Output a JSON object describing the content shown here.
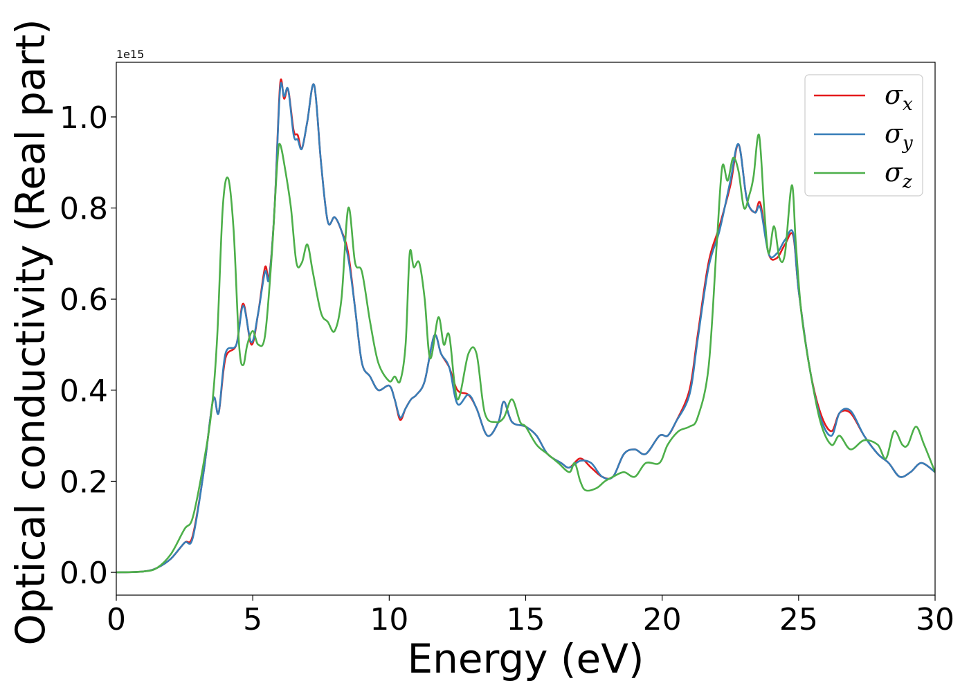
{
  "chart_data": {
    "type": "line",
    "title": "",
    "xlabel": "Energy (eV)",
    "ylabel": "Optical conductivity (Real part)",
    "y_offset_label": "1e15",
    "xlim": [
      0,
      30
    ],
    "ylim": [
      -0.05,
      1.12
    ],
    "xticks": [
      0,
      5,
      10,
      15,
      20,
      25,
      30
    ],
    "xtick_labels": [
      "0",
      "5",
      "10",
      "15",
      "20",
      "25",
      "30"
    ],
    "yticks": [
      0.0,
      0.2,
      0.4,
      0.6,
      0.8,
      1.0
    ],
    "ytick_labels": [
      "0.0",
      "0.2",
      "0.4",
      "0.6",
      "0.8",
      "1.0"
    ],
    "grid": false,
    "legend_position": "top-right",
    "series": [
      {
        "name": "σx",
        "legend_symbol": "σ",
        "legend_subscript": "x",
        "color": "#e41a1c",
        "points": [
          [
            0,
            0
          ],
          [
            1,
            0.002
          ],
          [
            1.5,
            0.01
          ],
          [
            2,
            0.03
          ],
          [
            2.5,
            0.065
          ],
          [
            2.8,
            0.08
          ],
          [
            3.2,
            0.22
          ],
          [
            3.55,
            0.38
          ],
          [
            3.75,
            0.35
          ],
          [
            4.0,
            0.47
          ],
          [
            4.4,
            0.5
          ],
          [
            4.65,
            0.59
          ],
          [
            4.95,
            0.5
          ],
          [
            5.2,
            0.57
          ],
          [
            5.45,
            0.67
          ],
          [
            5.6,
            0.65
          ],
          [
            5.8,
            0.8
          ],
          [
            6.0,
            1.07
          ],
          [
            6.15,
            1.04
          ],
          [
            6.3,
            1.06
          ],
          [
            6.5,
            0.97
          ],
          [
            6.65,
            0.96
          ],
          [
            6.8,
            0.93
          ],
          [
            7.0,
            0.99
          ],
          [
            7.25,
            1.07
          ],
          [
            7.5,
            0.9
          ],
          [
            7.75,
            0.77
          ],
          [
            8.0,
            0.78
          ],
          [
            8.25,
            0.75
          ],
          [
            8.5,
            0.7
          ],
          [
            8.75,
            0.58
          ],
          [
            9.0,
            0.46
          ],
          [
            9.3,
            0.43
          ],
          [
            9.6,
            0.4
          ],
          [
            10.0,
            0.41
          ],
          [
            10.2,
            0.38
          ],
          [
            10.4,
            0.335
          ],
          [
            10.6,
            0.36
          ],
          [
            10.8,
            0.38
          ],
          [
            11.0,
            0.39
          ],
          [
            11.3,
            0.42
          ],
          [
            11.65,
            0.52
          ],
          [
            11.9,
            0.48
          ],
          [
            12.2,
            0.45
          ],
          [
            12.5,
            0.4
          ],
          [
            12.9,
            0.39
          ],
          [
            13.2,
            0.36
          ],
          [
            13.6,
            0.3
          ],
          [
            14.0,
            0.33
          ],
          [
            14.2,
            0.375
          ],
          [
            14.5,
            0.33
          ],
          [
            15.0,
            0.32
          ],
          [
            15.4,
            0.3
          ],
          [
            15.8,
            0.26
          ],
          [
            16.3,
            0.24
          ],
          [
            16.6,
            0.23
          ],
          [
            17.0,
            0.25
          ],
          [
            17.4,
            0.23
          ],
          [
            17.8,
            0.21
          ],
          [
            18.2,
            0.21
          ],
          [
            18.6,
            0.26
          ],
          [
            19.0,
            0.27
          ],
          [
            19.4,
            0.26
          ],
          [
            19.9,
            0.3
          ],
          [
            20.2,
            0.3
          ],
          [
            20.5,
            0.33
          ],
          [
            21.0,
            0.4
          ],
          [
            21.3,
            0.52
          ],
          [
            21.7,
            0.68
          ],
          [
            22.1,
            0.76
          ],
          [
            22.5,
            0.85
          ],
          [
            22.8,
            0.94
          ],
          [
            23.1,
            0.82
          ],
          [
            23.4,
            0.79
          ],
          [
            23.6,
            0.81
          ],
          [
            23.9,
            0.7
          ],
          [
            24.2,
            0.69
          ],
          [
            24.5,
            0.72
          ],
          [
            24.8,
            0.74
          ],
          [
            25.0,
            0.62
          ],
          [
            25.4,
            0.45
          ],
          [
            25.8,
            0.35
          ],
          [
            26.2,
            0.31
          ],
          [
            26.5,
            0.35
          ],
          [
            26.9,
            0.35
          ],
          [
            27.4,
            0.3
          ],
          [
            27.9,
            0.26
          ],
          [
            28.3,
            0.24
          ],
          [
            28.7,
            0.21
          ],
          [
            29.1,
            0.22
          ],
          [
            29.5,
            0.24
          ],
          [
            30.0,
            0.22
          ]
        ]
      },
      {
        "name": "σy",
        "legend_symbol": "σ",
        "legend_subscript": "y",
        "color": "#377eb8",
        "points": [
          [
            0,
            0
          ],
          [
            1,
            0.002
          ],
          [
            1.5,
            0.01
          ],
          [
            2,
            0.03
          ],
          [
            2.5,
            0.065
          ],
          [
            2.8,
            0.075
          ],
          [
            3.2,
            0.22
          ],
          [
            3.55,
            0.38
          ],
          [
            3.75,
            0.35
          ],
          [
            4.0,
            0.48
          ],
          [
            4.4,
            0.5
          ],
          [
            4.65,
            0.585
          ],
          [
            4.95,
            0.505
          ],
          [
            5.2,
            0.57
          ],
          [
            5.45,
            0.66
          ],
          [
            5.6,
            0.645
          ],
          [
            5.8,
            0.8
          ],
          [
            6.0,
            1.06
          ],
          [
            6.15,
            1.045
          ],
          [
            6.3,
            1.06
          ],
          [
            6.5,
            0.96
          ],
          [
            6.65,
            0.95
          ],
          [
            6.8,
            0.93
          ],
          [
            7.0,
            0.99
          ],
          [
            7.25,
            1.07
          ],
          [
            7.5,
            0.9
          ],
          [
            7.75,
            0.77
          ],
          [
            8.0,
            0.78
          ],
          [
            8.25,
            0.75
          ],
          [
            8.5,
            0.69
          ],
          [
            8.75,
            0.58
          ],
          [
            9.0,
            0.46
          ],
          [
            9.3,
            0.43
          ],
          [
            9.6,
            0.4
          ],
          [
            10.0,
            0.41
          ],
          [
            10.2,
            0.38
          ],
          [
            10.4,
            0.34
          ],
          [
            10.6,
            0.36
          ],
          [
            10.8,
            0.38
          ],
          [
            11.0,
            0.39
          ],
          [
            11.3,
            0.42
          ],
          [
            11.65,
            0.52
          ],
          [
            11.9,
            0.48
          ],
          [
            12.2,
            0.45
          ],
          [
            12.5,
            0.37
          ],
          [
            12.9,
            0.39
          ],
          [
            13.2,
            0.36
          ],
          [
            13.6,
            0.3
          ],
          [
            14.0,
            0.33
          ],
          [
            14.2,
            0.375
          ],
          [
            14.5,
            0.33
          ],
          [
            15.0,
            0.32
          ],
          [
            15.4,
            0.3
          ],
          [
            15.8,
            0.26
          ],
          [
            16.3,
            0.24
          ],
          [
            16.6,
            0.23
          ],
          [
            17.0,
            0.245
          ],
          [
            17.4,
            0.24
          ],
          [
            17.8,
            0.21
          ],
          [
            18.2,
            0.21
          ],
          [
            18.6,
            0.26
          ],
          [
            19.0,
            0.27
          ],
          [
            19.4,
            0.26
          ],
          [
            19.9,
            0.3
          ],
          [
            20.2,
            0.3
          ],
          [
            20.5,
            0.33
          ],
          [
            21.0,
            0.39
          ],
          [
            21.3,
            0.51
          ],
          [
            21.7,
            0.67
          ],
          [
            22.1,
            0.75
          ],
          [
            22.5,
            0.86
          ],
          [
            22.8,
            0.94
          ],
          [
            23.1,
            0.82
          ],
          [
            23.4,
            0.79
          ],
          [
            23.6,
            0.8
          ],
          [
            23.9,
            0.7
          ],
          [
            24.2,
            0.7
          ],
          [
            24.5,
            0.73
          ],
          [
            24.8,
            0.745
          ],
          [
            25.0,
            0.62
          ],
          [
            25.4,
            0.45
          ],
          [
            25.8,
            0.34
          ],
          [
            26.2,
            0.3
          ],
          [
            26.5,
            0.35
          ],
          [
            26.9,
            0.355
          ],
          [
            27.4,
            0.3
          ],
          [
            27.9,
            0.26
          ],
          [
            28.3,
            0.24
          ],
          [
            28.7,
            0.21
          ],
          [
            29.1,
            0.22
          ],
          [
            29.5,
            0.24
          ],
          [
            30.0,
            0.22
          ]
        ]
      },
      {
        "name": "σz",
        "legend_symbol": "σ",
        "legend_subscript": "z",
        "color": "#4daf4a",
        "points": [
          [
            0,
            0
          ],
          [
            1,
            0.002
          ],
          [
            1.5,
            0.01
          ],
          [
            2,
            0.04
          ],
          [
            2.5,
            0.095
          ],
          [
            2.8,
            0.12
          ],
          [
            3.2,
            0.24
          ],
          [
            3.5,
            0.36
          ],
          [
            3.7,
            0.52
          ],
          [
            3.9,
            0.8
          ],
          [
            4.1,
            0.865
          ],
          [
            4.3,
            0.75
          ],
          [
            4.5,
            0.5
          ],
          [
            4.65,
            0.455
          ],
          [
            4.8,
            0.5
          ],
          [
            5.0,
            0.53
          ],
          [
            5.2,
            0.5
          ],
          [
            5.45,
            0.52
          ],
          [
            5.7,
            0.7
          ],
          [
            5.9,
            0.9
          ],
          [
            6.0,
            0.94
          ],
          [
            6.2,
            0.88
          ],
          [
            6.4,
            0.8
          ],
          [
            6.6,
            0.68
          ],
          [
            6.8,
            0.68
          ],
          [
            7.0,
            0.72
          ],
          [
            7.2,
            0.66
          ],
          [
            7.5,
            0.57
          ],
          [
            7.75,
            0.55
          ],
          [
            8.0,
            0.53
          ],
          [
            8.25,
            0.6
          ],
          [
            8.5,
            0.8
          ],
          [
            8.75,
            0.68
          ],
          [
            9.0,
            0.66
          ],
          [
            9.3,
            0.55
          ],
          [
            9.6,
            0.46
          ],
          [
            10.0,
            0.42
          ],
          [
            10.2,
            0.43
          ],
          [
            10.4,
            0.42
          ],
          [
            10.6,
            0.5
          ],
          [
            10.75,
            0.7
          ],
          [
            10.9,
            0.67
          ],
          [
            11.1,
            0.68
          ],
          [
            11.3,
            0.6
          ],
          [
            11.5,
            0.47
          ],
          [
            11.8,
            0.56
          ],
          [
            12.0,
            0.5
          ],
          [
            12.2,
            0.52
          ],
          [
            12.5,
            0.38
          ],
          [
            12.9,
            0.48
          ],
          [
            13.2,
            0.48
          ],
          [
            13.5,
            0.35
          ],
          [
            13.9,
            0.33
          ],
          [
            14.2,
            0.34
          ],
          [
            14.5,
            0.38
          ],
          [
            14.8,
            0.33
          ],
          [
            15.0,
            0.32
          ],
          [
            15.4,
            0.28
          ],
          [
            15.8,
            0.26
          ],
          [
            16.2,
            0.24
          ],
          [
            16.6,
            0.22
          ],
          [
            16.8,
            0.24
          ],
          [
            17.0,
            0.2
          ],
          [
            17.2,
            0.18
          ],
          [
            17.6,
            0.185
          ],
          [
            17.9,
            0.2
          ],
          [
            18.2,
            0.21
          ],
          [
            18.6,
            0.22
          ],
          [
            19.0,
            0.21
          ],
          [
            19.4,
            0.24
          ],
          [
            19.9,
            0.24
          ],
          [
            20.2,
            0.28
          ],
          [
            20.6,
            0.31
          ],
          [
            21.0,
            0.32
          ],
          [
            21.3,
            0.34
          ],
          [
            21.7,
            0.45
          ],
          [
            22.0,
            0.72
          ],
          [
            22.2,
            0.89
          ],
          [
            22.4,
            0.86
          ],
          [
            22.6,
            0.91
          ],
          [
            22.8,
            0.88
          ],
          [
            23.0,
            0.8
          ],
          [
            23.2,
            0.83
          ],
          [
            23.35,
            0.87
          ],
          [
            23.55,
            0.96
          ],
          [
            23.75,
            0.79
          ],
          [
            23.9,
            0.7
          ],
          [
            24.1,
            0.76
          ],
          [
            24.3,
            0.69
          ],
          [
            24.5,
            0.7
          ],
          [
            24.75,
            0.85
          ],
          [
            24.9,
            0.72
          ],
          [
            25.1,
            0.57
          ],
          [
            25.4,
            0.45
          ],
          [
            25.8,
            0.33
          ],
          [
            26.2,
            0.28
          ],
          [
            26.5,
            0.3
          ],
          [
            26.9,
            0.27
          ],
          [
            27.4,
            0.29
          ],
          [
            27.9,
            0.28
          ],
          [
            28.2,
            0.25
          ],
          [
            28.5,
            0.31
          ],
          [
            28.8,
            0.28
          ],
          [
            29.0,
            0.28
          ],
          [
            29.3,
            0.32
          ],
          [
            29.6,
            0.28
          ],
          [
            30.0,
            0.22
          ]
        ]
      }
    ]
  }
}
